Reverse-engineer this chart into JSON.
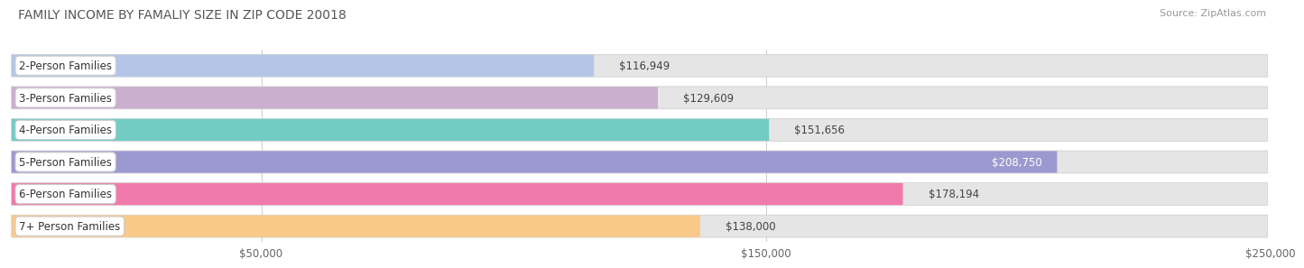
{
  "title": "FAMILY INCOME BY FAMALIY SIZE IN ZIP CODE 20018",
  "source": "Source: ZipAtlas.com",
  "categories": [
    "2-Person Families",
    "3-Person Families",
    "4-Person Families",
    "5-Person Families",
    "6-Person Families",
    "7+ Person Families"
  ],
  "values": [
    116949,
    129609,
    151656,
    208750,
    178194,
    138000
  ],
  "labels": [
    "$116,949",
    "$129,609",
    "$151,656",
    "$208,750",
    "$178,194",
    "$138,000"
  ],
  "bar_colors": [
    "#b3c6e7",
    "#cbaed0",
    "#72ccc4",
    "#9c99d0",
    "#f07aab",
    "#f9c98a"
  ],
  "bar_bg_color": "#e5e5e5",
  "xlim": [
    0,
    250000
  ],
  "xticks": [
    50000,
    150000,
    250000
  ],
  "xticklabels": [
    "$50,000",
    "$150,000",
    "$250,000"
  ],
  "title_fontsize": 10,
  "cat_fontsize": 8.5,
  "label_fontsize": 8.5,
  "tick_fontsize": 8.5,
  "source_fontsize": 8,
  "figure_bg": "#ffffff",
  "bar_height": 0.7,
  "bar_gap": 0.08
}
